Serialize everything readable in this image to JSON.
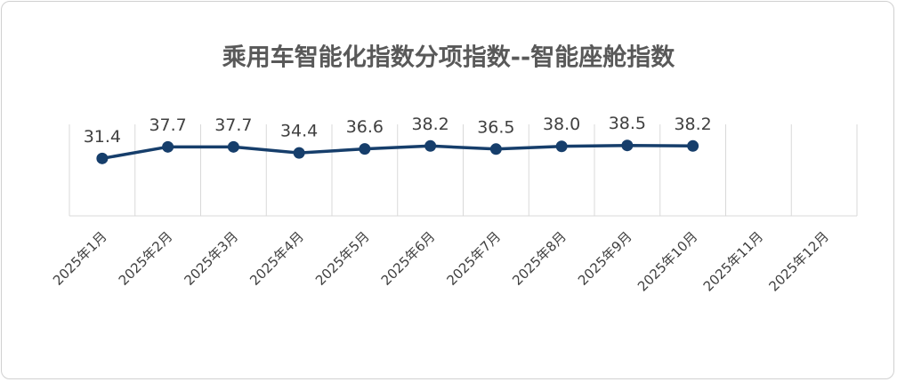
{
  "chart_data": {
    "type": "line",
    "title": "乘用车智能化指数分项指数--智能座舱指数",
    "categories": [
      "2025年1月",
      "2025年2月",
      "2025年3月",
      "2025年4月",
      "2025年5月",
      "2025年6月",
      "2025年7月",
      "2025年8月",
      "2025年9月",
      "2025年10月",
      "2025年11月",
      "2025年12月"
    ],
    "values": [
      31.4,
      37.7,
      37.7,
      34.4,
      36.6,
      38.2,
      36.5,
      38.0,
      38.5,
      38.2,
      null,
      null
    ],
    "value_labels": [
      "31.4",
      "37.7",
      "37.7",
      "34.4",
      "36.6",
      "38.2",
      "36.5",
      "38.0",
      "38.5",
      "38.2",
      null,
      null
    ],
    "color": "#163e6b",
    "ylim": [
      0,
      50
    ]
  }
}
